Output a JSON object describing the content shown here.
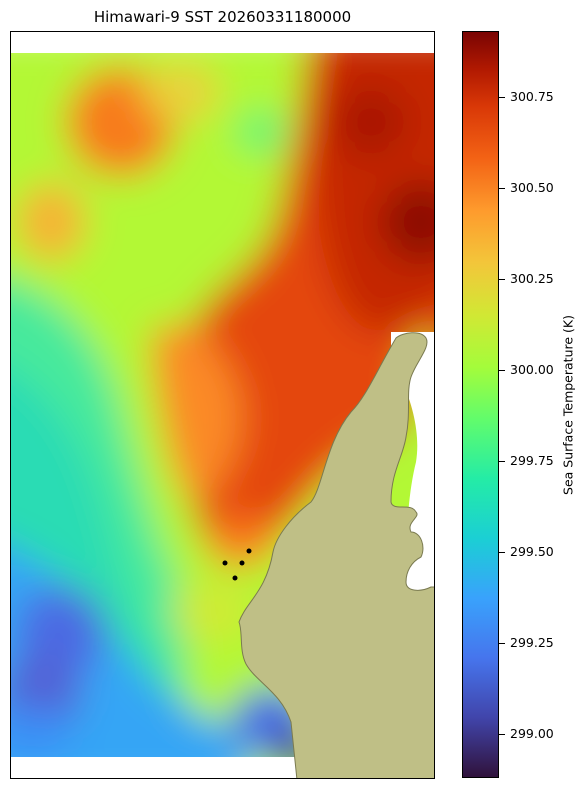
{
  "title": "Himawari-9 SST 20260331180000",
  "colorbar": {
    "label": "Sea Surface Temperature (K)",
    "colormap": "turbo",
    "range": [
      298.88,
      300.93
    ],
    "ticks": [
      {
        "value": 299.0,
        "label": "299.00"
      },
      {
        "value": 299.25,
        "label": "299.25"
      },
      {
        "value": 299.5,
        "label": "299.50"
      },
      {
        "value": 299.75,
        "label": "299.75"
      },
      {
        "value": 300.0,
        "label": "300.00"
      },
      {
        "value": 300.25,
        "label": "300.25"
      },
      {
        "value": 300.5,
        "label": "300.50"
      },
      {
        "value": 300.75,
        "label": "300.75"
      }
    ]
  },
  "map": {
    "land_color": "#bfbf86",
    "coast_color": "#777777",
    "marker_color": "#000000",
    "station_markers": 4
  }
}
